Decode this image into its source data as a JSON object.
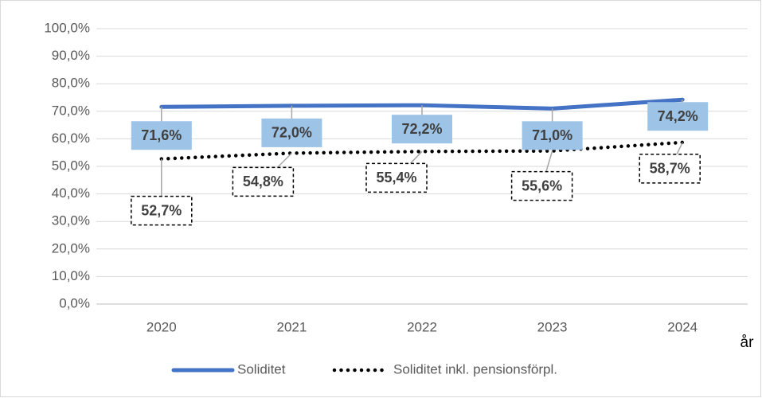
{
  "chart_data": {
    "type": "line",
    "categories": [
      "2020",
      "2021",
      "2022",
      "2023",
      "2024"
    ],
    "x_label": "år",
    "series": [
      {
        "name": "Soliditet",
        "color": "#4472c4",
        "style": "solid",
        "values": [
          71.6,
          72.0,
          72.2,
          71.0,
          74.2
        ],
        "value_labels": [
          "71,6%",
          "72,0%",
          "72,2%",
          "71,0%",
          "74,2%"
        ]
      },
      {
        "name": "Soliditet inkl. pensionsförpl.",
        "color": "#000000",
        "style": "dotted",
        "values": [
          52.7,
          54.8,
          55.4,
          55.6,
          58.7
        ],
        "value_labels": [
          "52,7%",
          "54,8%",
          "55,4%",
          "55,6%",
          "58,7%"
        ]
      }
    ],
    "ylim": [
      0,
      100
    ],
    "yticks": [
      {
        "value": 0,
        "label": "0,0%"
      },
      {
        "value": 10,
        "label": "10,0%"
      },
      {
        "value": 20,
        "label": "20,0%"
      },
      {
        "value": 30,
        "label": "30,0%"
      },
      {
        "value": 40,
        "label": "40,0%"
      },
      {
        "value": 50,
        "label": "50,0%"
      },
      {
        "value": 60,
        "label": "60,0%"
      },
      {
        "value": 70,
        "label": "70,0%"
      },
      {
        "value": 80,
        "label": "80,0%"
      },
      {
        "value": 90,
        "label": "90,0%"
      },
      {
        "value": 100,
        "label": "100,0%"
      }
    ],
    "grid": true,
    "legend": "bottom"
  }
}
